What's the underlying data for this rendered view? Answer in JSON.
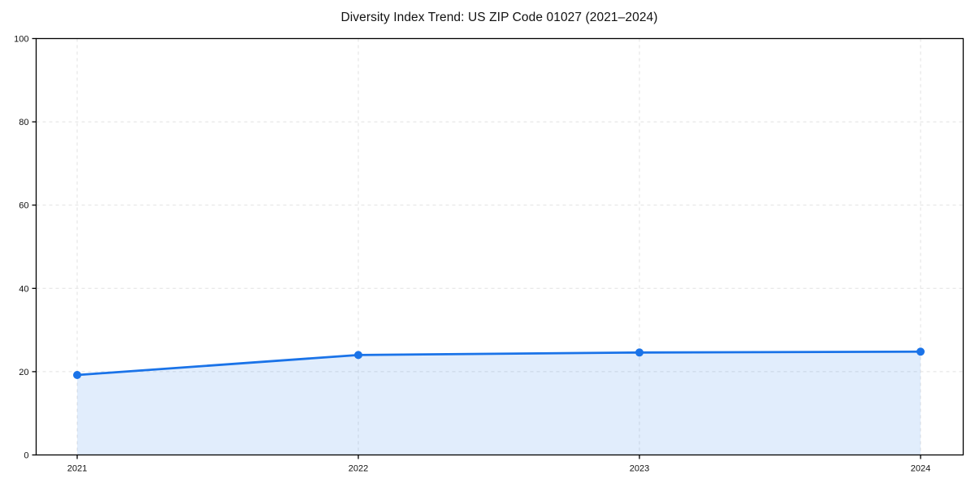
{
  "chart_data": {
    "type": "area",
    "title": "Diversity Index Trend: US ZIP Code 01027 (2021–2024)",
    "series_name": "Diversity Index",
    "x": [
      2021,
      2022,
      2023,
      2024
    ],
    "xticklabels": [
      "2021",
      "2022",
      "2023",
      "2024"
    ],
    "values": [
      19.2,
      24.0,
      24.6,
      24.8
    ],
    "xlabel": "",
    "ylabel": "",
    "ylim": [
      0,
      100
    ],
    "yticks": [
      0,
      20,
      40,
      60,
      80,
      100
    ],
    "grid": true,
    "grid_style": "dashed",
    "legend_position": "none",
    "colors": {
      "line": "#1a73e8",
      "marker": "#1a73e8",
      "fill": "rgba(26,115,232,0.13)",
      "grid": "#e2e2e2",
      "axis": "#000000",
      "tick_text": "#111111"
    }
  }
}
